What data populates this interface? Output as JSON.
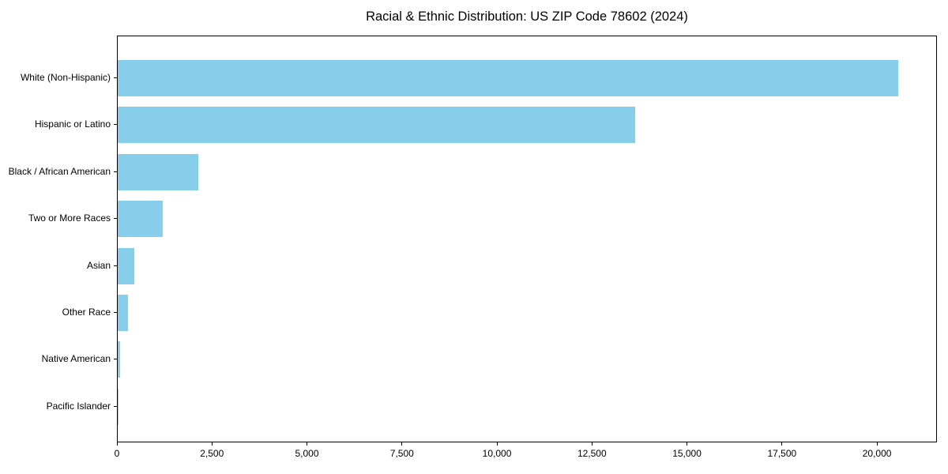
{
  "title": "Racial & Ethnic Distribution: US ZIP Code 78602 (2024)",
  "chart_data": {
    "type": "bar",
    "orientation": "horizontal",
    "title": "Racial & Ethnic Distribution: US ZIP Code 78602 (2024)",
    "categories": [
      "White (Non-Hispanic)",
      "Hispanic or Latino",
      "Black / African American",
      "Two or More Races",
      "Asian",
      "Other Race",
      "Native American",
      "Pacific Islander"
    ],
    "values": [
      20540,
      13610,
      2120,
      1180,
      430,
      260,
      65,
      8
    ],
    "bar_color": "#87CEEB",
    "xlabel": "",
    "ylabel": "",
    "xlim": [
      0,
      21578
    ],
    "x_ticks": [
      0,
      2500,
      5000,
      7500,
      10000,
      12500,
      15000,
      17500,
      20000
    ],
    "x_tick_labels": [
      "0",
      "2,500",
      "5,000",
      "7,500",
      "10,000",
      "12,500",
      "15,000",
      "17,500",
      "20,000"
    ],
    "grid": false,
    "legend": null,
    "axis_color": "#000000",
    "background_color": "#ffffff"
  }
}
